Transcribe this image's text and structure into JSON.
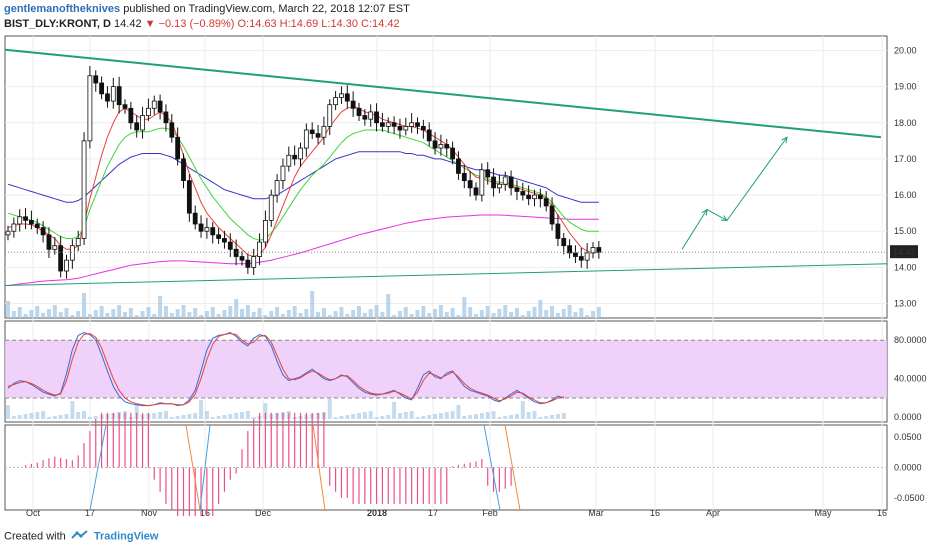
{
  "header": {
    "author": "gentlemanoftheknives",
    "published": "published on TradingView.com, March 22, 2018 12:07 EST",
    "symbol": "BIST_DLY:KRONT, D",
    "last": "14.42",
    "change": "▼ −0.13 (−0.89%)",
    "ohlc_open": "O:14.63",
    "ohlc_high": "H:14.69",
    "ohlc_low": "L:14.30",
    "ohlc_close": "C:14.42"
  },
  "footer": {
    "created_with": "Created with",
    "brand": "TradingView"
  },
  "colors": {
    "up": "#ffffff",
    "down": "#111111",
    "sma_fast": "#e8423a",
    "sma_mid": "#3dd63d",
    "sma_slow": "#3535c8",
    "sma_long": "#e62fe0",
    "trend": "#1f9e7a",
    "stoch_fill": "#ebc6f7",
    "macd_hist": "#ee4f86",
    "volume": "#9ec3e3"
  },
  "chart_data": [
    {
      "type": "candlestick",
      "title": "BIST_DLY:KRONT, D",
      "x_ticks": [
        "Oct",
        "17",
        "Nov",
        "16",
        "Dec",
        "2018",
        "17",
        "Feb",
        "Mar",
        "16",
        "Apr",
        "May",
        "16"
      ],
      "y_ticks": [
        "13.00",
        "14.00",
        "15.00",
        "16.00",
        "17.00",
        "18.00",
        "19.00",
        "20.00"
      ],
      "ylim": [
        12.6,
        20.4
      ],
      "last_price_label": "14.42",
      "closes": [
        15.0,
        15.2,
        15.4,
        15.3,
        15.2,
        15.1,
        14.9,
        14.5,
        14.6,
        13.9,
        14.2,
        14.6,
        14.8,
        17.5,
        19.3,
        19.1,
        18.8,
        18.6,
        19.0,
        18.5,
        18.4,
        18.0,
        17.8,
        18.2,
        18.4,
        18.6,
        18.3,
        18.0,
        17.6,
        17.0,
        16.4,
        15.5,
        15.2,
        15.0,
        15.1,
        14.9,
        14.8,
        14.7,
        14.5,
        14.3,
        14.2,
        14.0,
        14.3,
        14.7,
        15.3,
        16.0,
        16.4,
        16.8,
        17.1,
        17.0,
        17.3,
        17.8,
        17.7,
        17.6,
        17.9,
        18.5,
        18.7,
        18.8,
        18.6,
        18.4,
        18.2,
        18.1,
        18.3,
        18.0,
        17.9,
        18.0,
        17.9,
        17.8,
        17.9,
        18.0,
        17.9,
        17.8,
        17.5,
        17.3,
        17.4,
        17.3,
        17.0,
        16.6,
        16.4,
        16.2,
        16.0,
        16.7,
        16.5,
        16.2,
        16.3,
        16.5,
        16.2,
        16.1,
        16.0,
        15.9,
        16.0,
        15.9,
        15.7,
        15.2,
        14.8,
        14.6,
        14.4,
        14.3,
        14.2,
        14.4,
        14.55,
        14.42
      ],
      "sma_fast": [
        15.1,
        15.15,
        15.2,
        15.2,
        15.18,
        15.1,
        15.0,
        14.9,
        14.8,
        14.6,
        14.5,
        14.5,
        14.6,
        15.2,
        15.9,
        16.5,
        17.1,
        17.6,
        18.0,
        18.3,
        18.4,
        18.3,
        18.2,
        18.1,
        18.1,
        18.2,
        18.3,
        18.2,
        18.0,
        17.6,
        17.1,
        16.6,
        16.2,
        15.8,
        15.5,
        15.3,
        15.1,
        14.95,
        14.8,
        14.65,
        14.5,
        14.35,
        14.3,
        14.35,
        14.55,
        14.9,
        15.3,
        15.7,
        16.1,
        16.5,
        16.8,
        17.0,
        17.2,
        17.4,
        17.6,
        17.9,
        18.1,
        18.3,
        18.4,
        18.45,
        18.4,
        18.3,
        18.25,
        18.2,
        18.1,
        18.05,
        18.0,
        17.95,
        17.9,
        17.9,
        17.85,
        17.8,
        17.7,
        17.6,
        17.5,
        17.4,
        17.25,
        17.05,
        16.85,
        16.65,
        16.5,
        16.45,
        16.4,
        16.35,
        16.3,
        16.3,
        16.25,
        16.2,
        16.15,
        16.1,
        16.05,
        16.0,
        15.9,
        15.7,
        15.45,
        15.2,
        14.95,
        14.75,
        14.55,
        14.45,
        14.4,
        14.42
      ],
      "sma_mid": [
        15.5,
        15.45,
        15.4,
        15.35,
        15.3,
        15.25,
        15.15,
        15.05,
        14.95,
        14.85,
        14.8,
        14.8,
        14.85,
        15.1,
        15.6,
        16.0,
        16.4,
        16.8,
        17.1,
        17.4,
        17.6,
        17.7,
        17.75,
        17.75,
        17.75,
        17.8,
        17.85,
        17.85,
        17.8,
        17.6,
        17.35,
        17.05,
        16.75,
        16.45,
        16.2,
        15.95,
        15.75,
        15.55,
        15.35,
        15.2,
        15.05,
        14.9,
        14.8,
        14.75,
        14.8,
        14.95,
        15.15,
        15.4,
        15.65,
        15.9,
        16.15,
        16.35,
        16.55,
        16.7,
        16.85,
        17.05,
        17.25,
        17.45,
        17.6,
        17.7,
        17.75,
        17.8,
        17.8,
        17.8,
        17.8,
        17.75,
        17.7,
        17.65,
        17.6,
        17.55,
        17.5,
        17.45,
        17.35,
        17.25,
        17.15,
        17.05,
        16.95,
        16.85,
        16.75,
        16.65,
        16.55,
        16.5,
        16.45,
        16.4,
        16.35,
        16.35,
        16.3,
        16.25,
        16.2,
        16.15,
        16.1,
        16.05,
        15.95,
        15.8,
        15.6,
        15.4,
        15.25,
        15.15,
        15.05,
        15.0,
        15.0,
        15.0
      ],
      "sma_slow": [
        16.3,
        16.25,
        16.2,
        16.15,
        16.1,
        16.05,
        16.0,
        15.95,
        15.9,
        15.85,
        15.8,
        15.8,
        15.85,
        15.95,
        16.1,
        16.25,
        16.4,
        16.55,
        16.7,
        16.85,
        16.95,
        17.05,
        17.1,
        17.15,
        17.15,
        17.15,
        17.15,
        17.1,
        17.05,
        16.95,
        16.85,
        16.75,
        16.65,
        16.55,
        16.45,
        16.35,
        16.25,
        16.15,
        16.1,
        16.05,
        16.0,
        15.95,
        15.9,
        15.9,
        15.9,
        15.95,
        16.0,
        16.1,
        16.2,
        16.3,
        16.4,
        16.5,
        16.6,
        16.7,
        16.8,
        16.9,
        17.0,
        17.05,
        17.1,
        17.15,
        17.2,
        17.2,
        17.2,
        17.2,
        17.2,
        17.2,
        17.2,
        17.2,
        17.15,
        17.15,
        17.1,
        17.1,
        17.05,
        17.0,
        17.0,
        16.95,
        16.9,
        16.85,
        16.8,
        16.75,
        16.7,
        16.7,
        16.65,
        16.6,
        16.55,
        16.55,
        16.5,
        16.45,
        16.4,
        16.35,
        16.3,
        16.25,
        16.2,
        16.1,
        16.0,
        15.95,
        15.9,
        15.85,
        15.8,
        15.8,
        15.8,
        15.8
      ],
      "sma_long": [
        13.5,
        13.52,
        13.54,
        13.56,
        13.58,
        13.6,
        13.62,
        13.63,
        13.64,
        13.65,
        13.66,
        13.68,
        13.7,
        13.74,
        13.78,
        13.82,
        13.86,
        13.9,
        13.94,
        13.98,
        14.02,
        14.06,
        14.08,
        14.1,
        14.12,
        14.14,
        14.16,
        14.17,
        14.18,
        14.18,
        14.18,
        14.17,
        14.16,
        14.15,
        14.14,
        14.13,
        14.12,
        14.11,
        14.1,
        14.1,
        14.1,
        14.1,
        14.12,
        14.14,
        14.17,
        14.2,
        14.24,
        14.28,
        14.32,
        14.36,
        14.4,
        14.45,
        14.5,
        14.55,
        14.6,
        14.65,
        14.7,
        14.75,
        14.8,
        14.85,
        14.9,
        14.94,
        14.98,
        15.02,
        15.06,
        15.1,
        15.14,
        15.18,
        15.22,
        15.25,
        15.28,
        15.31,
        15.33,
        15.35,
        15.37,
        15.39,
        15.4,
        15.41,
        15.42,
        15.43,
        15.44,
        15.45,
        15.45,
        15.45,
        15.45,
        15.44,
        15.43,
        15.42,
        15.41,
        15.4,
        15.39,
        15.38,
        15.37,
        15.36,
        15.35,
        15.34,
        15.33,
        15.33,
        15.33,
        15.33,
        15.33,
        15.33
      ],
      "trendline_upper": [
        [
          0,
          20.02
        ],
        [
          101,
          17.6
        ]
      ],
      "trendline_lower": [
        [
          0,
          13.5
        ],
        [
          101,
          14.1
        ]
      ],
      "projection_path": [
        [
          101,
          14.5
        ],
        [
          105,
          15.6
        ],
        [
          107,
          15.3
        ],
        [
          112,
          17.6
        ]
      ]
    },
    {
      "type": "line",
      "title": "Stochastic",
      "y_ticks": [
        "0.0000",
        "40.0000",
        "80.0000"
      ],
      "ylim": [
        -5,
        100
      ],
      "band": [
        20,
        80
      ],
      "series": [
        {
          "values": [
            30,
            35,
            38,
            37,
            34,
            30,
            26,
            24,
            22,
            25,
            45,
            70,
            85,
            88,
            86,
            80,
            65,
            48,
            32,
            22,
            16,
            14,
            13,
            12,
            12,
            13,
            15,
            14,
            14,
            12,
            13,
            18,
            28,
            48,
            70,
            82,
            85,
            86,
            88,
            84,
            78,
            74,
            82,
            86,
            84,
            74,
            58,
            44,
            38,
            40,
            42,
            46,
            50,
            45,
            40,
            38,
            40,
            44,
            42,
            36,
            30,
            26,
            24,
            23,
            24,
            26,
            28,
            24,
            20,
            18,
            30,
            44,
            48,
            42,
            40,
            46,
            48,
            40,
            32,
            28,
            26,
            24,
            22,
            18,
            16,
            20,
            24,
            28,
            24,
            20,
            16,
            14,
            15,
            18,
            22,
            20
          ]
        },
        {
          "values": [
            32,
            34,
            36,
            37,
            35,
            32,
            28,
            25,
            23,
            24,
            38,
            60,
            78,
            86,
            87,
            83,
            72,
            56,
            40,
            28,
            20,
            16,
            14,
            13,
            12,
            13,
            14,
            14,
            14,
            13,
            13,
            16,
            24,
            40,
            60,
            76,
            84,
            86,
            87,
            86,
            80,
            76,
            78,
            84,
            85,
            78,
            64,
            50,
            40,
            39,
            41,
            45,
            48,
            46,
            42,
            39,
            40,
            43,
            43,
            38,
            32,
            28,
            25,
            24,
            24,
            25,
            27,
            25,
            22,
            19,
            26,
            38,
            46,
            44,
            41,
            44,
            47,
            42,
            35,
            30,
            27,
            25,
            23,
            20,
            17,
            19,
            22,
            26,
            25,
            21,
            18,
            15,
            15,
            17,
            20,
            21
          ]
        }
      ]
    },
    {
      "type": "bar",
      "title": "MACD histogram",
      "y_ticks": [
        "-0.0500",
        "0.0000",
        "0.0500"
      ],
      "ylim": [
        -0.07,
        0.07
      ],
      "values": [
        0.004,
        0.006,
        0.008,
        0.012,
        0.015,
        0.018,
        0.016,
        0.014,
        0.012,
        0.02,
        0.04,
        0.06,
        0.08,
        0.09,
        0.09,
        0.09,
        0.09,
        0.09,
        0.09,
        0.09,
        0.09,
        0.09,
        -0.02,
        -0.04,
        -0.06,
        -0.07,
        -0.08,
        -0.08,
        -0.08,
        -0.08,
        -0.08,
        -0.08,
        -0.08,
        -0.06,
        -0.04,
        -0.02,
        -0.01,
        0.03,
        0.06,
        0.08,
        0.09,
        0.09,
        0.09,
        0.09,
        0.09,
        0.09,
        0.09,
        0.09,
        0.09,
        0.09,
        0.09,
        0.09,
        -0.03,
        -0.04,
        -0.05,
        -0.05,
        -0.06,
        -0.06,
        -0.06,
        -0.06,
        -0.06,
        -0.06,
        -0.06,
        -0.06,
        -0.06,
        -0.06,
        -0.06,
        -0.06,
        -0.06,
        -0.06,
        -0.06,
        -0.06,
        -0.06,
        0.002,
        0.004,
        0.006,
        0.008,
        0.01,
        0.014,
        -0.03,
        -0.04,
        -0.04,
        -0.035,
        -0.03
      ]
    }
  ]
}
